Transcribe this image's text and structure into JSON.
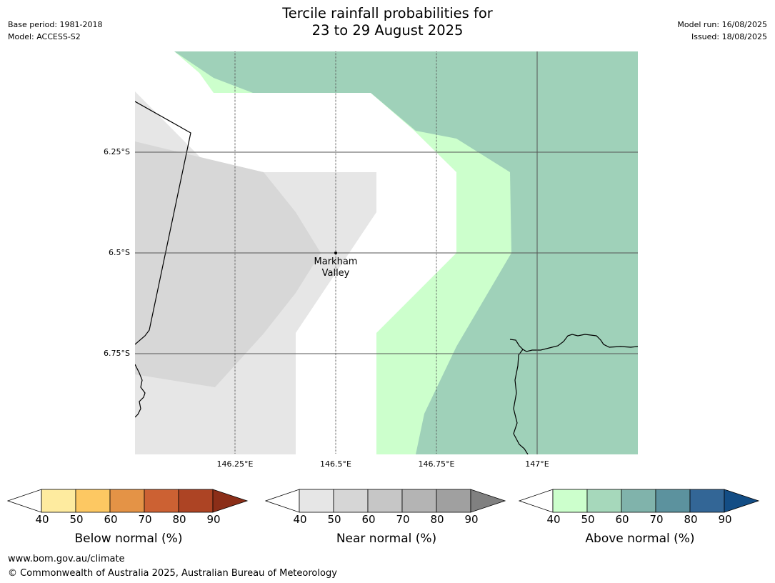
{
  "title_line1": "Tercile rainfall probabilities for",
  "title_line2": "23 to 29 August 2025",
  "meta_left": {
    "base_period": "Base period: 1981-2018",
    "model": "Model: ACCESS-S2"
  },
  "meta_right": {
    "model_run": "Model run: 16/08/2025",
    "issued": "Issued: 18/08/2025"
  },
  "map": {
    "y_labels": [
      "6.25°S",
      "6.5°S",
      "6.75°S"
    ],
    "x_labels": [
      "146.25°E",
      "146.5°E",
      "146.75°E",
      "147°E"
    ],
    "place": {
      "line1": "Markham",
      "line2": "Valley"
    },
    "colors": {
      "near_40": "#e6e6e6",
      "near_50": "#d7d7d7",
      "above_40": "#ccffcc",
      "above_50": "#9fd1b9",
      "no_dominant": "#ffffff"
    }
  },
  "colorbars": [
    {
      "title": "Below normal (%)",
      "ticks": [
        "40",
        "50",
        "60",
        "70",
        "80",
        "90"
      ],
      "colors": [
        "#feeb9f",
        "#fdc862",
        "#e49346",
        "#cc6133",
        "#ad4424",
        "#8b2e18"
      ]
    },
    {
      "title": "Near normal (%)",
      "ticks": [
        "40",
        "50",
        "60",
        "70",
        "80",
        "90"
      ],
      "colors": [
        "#e6e6e6",
        "#d6d6d6",
        "#c6c6c6",
        "#b4b4b4",
        "#a0a0a0",
        "#808080"
      ]
    },
    {
      "title": "Above normal (%)",
      "ticks": [
        "40",
        "50",
        "60",
        "70",
        "80",
        "90"
      ],
      "colors": [
        "#ccffcc",
        "#a6d8bb",
        "#80b3ab",
        "#5c929e",
        "#336696",
        "#134d85"
      ]
    }
  ],
  "footer": {
    "url": "www.bom.gov.au/climate",
    "copyright": "© Commonwealth of Australia 2025, Australian Bureau of Meteorology"
  }
}
